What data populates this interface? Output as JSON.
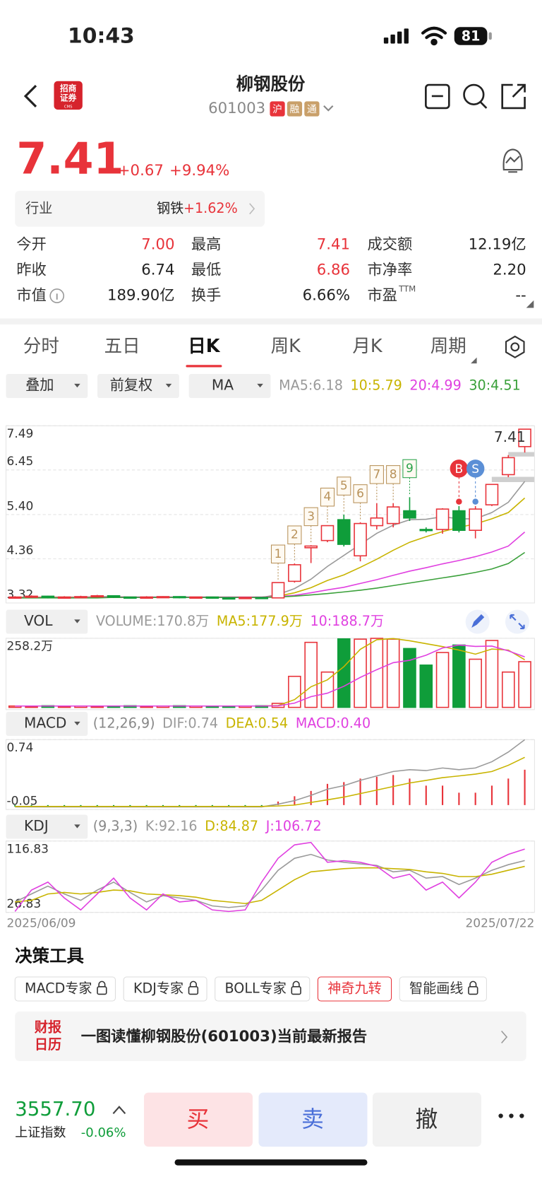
{
  "status_bar": {
    "time": "10:43",
    "battery": "81"
  },
  "header": {
    "logo_text": [
      "招商",
      "证券"
    ],
    "logo_sub": "CMS",
    "title": "柳钢股份",
    "code": "601003",
    "badges": [
      {
        "text": "沪",
        "color": "#e8333a"
      },
      {
        "text": "融",
        "color": "#c9a06a"
      },
      {
        "text": "通",
        "color": "#c9a06a"
      }
    ]
  },
  "quote": {
    "price": "7.41",
    "change": "+0.67",
    "change_pct": "+9.94%"
  },
  "industry": {
    "label": "行业",
    "name": "钢铁",
    "change": "+1.62%"
  },
  "stats": [
    {
      "label": "今开",
      "value": "7.00",
      "color": "#e8333a"
    },
    {
      "label": "最高",
      "value": "7.41",
      "color": "#e8333a"
    },
    {
      "label": "成交额",
      "value": "12.19亿"
    },
    {
      "label": "昨收",
      "value": "6.74"
    },
    {
      "label": "最低",
      "value": "6.86",
      "color": "#e8333a"
    },
    {
      "label": "市净率",
      "value": "2.20"
    },
    {
      "label": "市值",
      "value": "189.90亿",
      "info": true
    },
    {
      "label": "换手",
      "value": "6.66%"
    },
    {
      "label": "市盈",
      "sup": "TTM",
      "value": "--"
    }
  ],
  "tabs": {
    "items": [
      "分时",
      "五日",
      "日K",
      "周K",
      "月K",
      "周期"
    ],
    "active": 2
  },
  "toolbar": {
    "buttons": [
      "叠加",
      "前复权",
      "MA"
    ]
  },
  "chart_data": [
    {
      "type": "candlestick",
      "open": [
        3.44,
        3.46,
        3.48,
        3.45,
        3.46,
        3.47,
        3.49,
        3.46,
        3.45,
        3.46,
        3.47,
        3.45,
        3.46,
        3.44,
        3.43,
        3.45,
        3.44,
        3.83,
        4.62,
        4.79,
        5.28,
        4.43,
        5.14,
        5.19,
        5.49,
        5.05,
        5.05,
        5.49,
        5.03,
        5.63,
        6.34,
        7.0
      ],
      "close": [
        3.46,
        3.48,
        3.45,
        3.46,
        3.47,
        3.49,
        3.46,
        3.45,
        3.46,
        3.47,
        3.45,
        3.46,
        3.44,
        3.43,
        3.45,
        3.44,
        3.8,
        4.22,
        4.66,
        5.14,
        4.7,
        5.19,
        5.32,
        5.58,
        5.32,
        5.03,
        5.53,
        5.03,
        5.53,
        6.11,
        6.74,
        7.41
      ],
      "low": [
        3.42,
        3.44,
        3.43,
        3.43,
        3.44,
        3.45,
        3.44,
        3.43,
        3.43,
        3.44,
        3.43,
        3.43,
        3.42,
        3.42,
        3.42,
        3.42,
        3.43,
        3.8,
        4.26,
        4.75,
        4.65,
        4.3,
        5.05,
        5.1,
        5.25,
        4.98,
        4.95,
        4.98,
        4.84,
        5.6,
        6.28,
        6.86
      ],
      "high": [
        3.48,
        3.5,
        3.49,
        3.48,
        3.49,
        3.51,
        3.5,
        3.47,
        3.48,
        3.48,
        3.48,
        3.47,
        3.47,
        3.46,
        3.46,
        3.46,
        3.8,
        4.25,
        4.68,
        5.14,
        5.4,
        5.22,
        5.67,
        5.67,
        5.81,
        5.1,
        5.55,
        5.6,
        5.6,
        6.11,
        6.8,
        7.41
      ],
      "up_color": "#e8333a",
      "down_color": "#0f9d3a",
      "ylim": [
        3.32,
        7.49
      ],
      "yticks": [
        3.32,
        4.36,
        {
          "value": 5.4,
          "label": "5.40"
        },
        6.45,
        7.49
      ],
      "series": [
        {
          "name": "MA5:",
          "legend_value": "6.18",
          "color": "#9a9a9a",
          "values": [
            3.45,
            3.45,
            3.46,
            3.46,
            3.46,
            3.47,
            3.47,
            3.46,
            3.46,
            3.46,
            3.46,
            3.46,
            3.46,
            3.45,
            3.45,
            3.45,
            3.52,
            3.66,
            3.88,
            4.18,
            4.44,
            4.7,
            4.96,
            5.15,
            5.28,
            5.29,
            5.35,
            5.3,
            5.3,
            5.45,
            5.69,
            6.18
          ]
        },
        {
          "name": "10:",
          "legend_value": "5.79",
          "color": "#c8b400",
          "values": [
            3.46,
            3.46,
            3.46,
            3.46,
            3.46,
            3.46,
            3.46,
            3.46,
            3.46,
            3.46,
            3.46,
            3.46,
            3.46,
            3.46,
            3.46,
            3.46,
            3.48,
            3.56,
            3.68,
            3.85,
            3.98,
            4.16,
            4.35,
            4.56,
            4.75,
            4.88,
            5.0,
            5.1,
            5.18,
            5.3,
            5.45,
            5.79
          ]
        },
        {
          "name": "20:",
          "legend_value": "4.99",
          "color": "#e040e0",
          "values": [
            3.45,
            3.45,
            3.45,
            3.45,
            3.45,
            3.45,
            3.46,
            3.46,
            3.46,
            3.46,
            3.46,
            3.46,
            3.46,
            3.46,
            3.46,
            3.46,
            3.47,
            3.5,
            3.56,
            3.63,
            3.69,
            3.78,
            3.87,
            3.97,
            4.07,
            4.15,
            4.24,
            4.32,
            4.41,
            4.52,
            4.66,
            4.99
          ]
        },
        {
          "name": "30:",
          "legend_value": "4.51",
          "color": "#3aa03a",
          "values": [
            3.44,
            3.44,
            3.44,
            3.44,
            3.44,
            3.44,
            3.45,
            3.45,
            3.45,
            3.45,
            3.45,
            3.45,
            3.45,
            3.45,
            3.45,
            3.45,
            3.46,
            3.48,
            3.51,
            3.54,
            3.58,
            3.62,
            3.67,
            3.73,
            3.79,
            3.85,
            3.91,
            3.97,
            4.04,
            4.12,
            4.25,
            4.51
          ]
        }
      ],
      "last_price_label": "7.41",
      "nine_turn": [
        "1",
        "2",
        "3",
        "4",
        "5",
        "6",
        "7",
        "8",
        "9"
      ],
      "signals": [
        "B",
        "S"
      ]
    },
    {
      "type": "bar",
      "selector": "VOL",
      "values": [
        5,
        4,
        6,
        4,
        5,
        4,
        5,
        6,
        4,
        5,
        6,
        5,
        4,
        4,
        5,
        6,
        15,
        116,
        243,
        132,
        256,
        255,
        258,
        255,
        220,
        158,
        205,
        233,
        180,
        250,
        132,
        170.8
      ],
      "legend": {
        "name": "VOLUME:",
        "legend_value": "170.8万",
        "color": "#9a9a9a"
      },
      "ylim": [
        0,
        258.2
      ],
      "yticks": [
        {
          "value": 258.2,
          "label": "258.2万"
        }
      ],
      "series": [
        {
          "name": "MA5:",
          "legend_value": "177.9万",
          "color": "#c8b400",
          "values": [
            5,
            5,
            5,
            5,
            5,
            5,
            5,
            5,
            5,
            5,
            5,
            5,
            5,
            5,
            5,
            5,
            7,
            29,
            77,
            103,
            152,
            217,
            253,
            257,
            249,
            238,
            227,
            214,
            199,
            218,
            214,
            177.9
          ]
        },
        {
          "name": "10:",
          "legend_value": "188.7万",
          "color": "#e040e0",
          "values": [
            5,
            5,
            5,
            5,
            5,
            5,
            5,
            5,
            5,
            5,
            5,
            5,
            5,
            5,
            5,
            5,
            6,
            16,
            40,
            53,
            79,
            112,
            141,
            167,
            176,
            195,
            222,
            233,
            228,
            229,
            211,
            188.7
          ]
        }
      ]
    },
    {
      "type": "macd",
      "selector": "MACD",
      "params": "(12,26,9)",
      "ylim": [
        -0.05,
        0.74
      ],
      "yticks": [
        0.74,
        -0.05
      ],
      "series": [
        {
          "name": "DIF:",
          "legend_value": "0.74",
          "color": "#9a9a9a",
          "values": [
            -0.02,
            -0.02,
            -0.02,
            -0.02,
            -0.02,
            -0.02,
            -0.02,
            -0.02,
            -0.02,
            -0.02,
            -0.02,
            -0.02,
            -0.02,
            -0.02,
            -0.02,
            -0.02,
            0.01,
            0.05,
            0.11,
            0.18,
            0.22,
            0.28,
            0.33,
            0.38,
            0.4,
            0.39,
            0.42,
            0.4,
            0.42,
            0.49,
            0.6,
            0.74
          ]
        },
        {
          "name": "DEA:",
          "legend_value": "0.54",
          "color": "#c8b400",
          "values": [
            -0.015,
            -0.015,
            -0.015,
            -0.015,
            -0.015,
            -0.015,
            -0.015,
            -0.015,
            -0.015,
            -0.015,
            -0.015,
            -0.015,
            -0.015,
            -0.015,
            -0.015,
            -0.015,
            -0.01,
            0.0,
            0.03,
            0.06,
            0.09,
            0.13,
            0.17,
            0.21,
            0.25,
            0.28,
            0.31,
            0.33,
            0.35,
            0.38,
            0.45,
            0.54
          ]
        }
      ],
      "bars": {
        "name": "MACD:",
        "legend_value": "0.40",
        "color": "#e040e0",
        "values": [
          -0.01,
          -0.01,
          -0.01,
          -0.01,
          -0.01,
          -0.01,
          -0.01,
          -0.01,
          -0.01,
          -0.01,
          -0.01,
          -0.01,
          -0.01,
          -0.01,
          -0.01,
          -0.01,
          0.04,
          0.1,
          0.16,
          0.24,
          0.26,
          0.3,
          0.32,
          0.34,
          0.3,
          0.22,
          0.22,
          0.14,
          0.14,
          0.22,
          0.3,
          0.4
        ]
      }
    },
    {
      "type": "line",
      "selector": "KDJ",
      "params": "(9,3,3)",
      "categories": [
        "2025/06/09",
        null,
        null,
        null,
        null,
        null,
        null,
        null,
        null,
        null,
        null,
        null,
        null,
        null,
        null,
        null,
        null,
        null,
        null,
        null,
        null,
        null,
        null,
        null,
        null,
        null,
        null,
        null,
        null,
        null,
        null,
        "2025/07/22"
      ],
      "ylim": [
        26.83,
        116.83
      ],
      "yticks": [
        116.83,
        26.83
      ],
      "series": [
        {
          "name": "K:",
          "legend_value": "92.16",
          "color": "#9a9a9a",
          "values": [
            40,
            50,
            60,
            50,
            42,
            55,
            65,
            52,
            40,
            48,
            45,
            42,
            35,
            33,
            35,
            55,
            80,
            95,
            100,
            93,
            90,
            88,
            86,
            78,
            80,
            70,
            72,
            62,
            70,
            80,
            87,
            92.16
          ]
        },
        {
          "name": "D:",
          "legend_value": "84.87",
          "color": "#c8b400",
          "values": [
            40,
            42,
            50,
            52,
            50,
            52,
            55,
            54,
            50,
            49,
            48,
            46,
            42,
            40,
            38,
            42,
            55,
            68,
            78,
            80,
            82,
            83,
            83,
            82,
            81,
            78,
            76,
            72,
            72,
            75,
            80,
            84.87
          ]
        },
        {
          "name": "J:",
          "legend_value": "106.72",
          "color": "#e040e0",
          "values": [
            28,
            55,
            65,
            45,
            30,
            50,
            70,
            45,
            30,
            50,
            40,
            42,
            30,
            28,
            30,
            65,
            95,
            112,
            115,
            90,
            92,
            90,
            85,
            70,
            75,
            55,
            65,
            45,
            65,
            90,
            100,
            106.72
          ]
        }
      ]
    }
  ],
  "tools": {
    "title": "决策工具",
    "items": [
      {
        "label": "MACD专家",
        "lock": true
      },
      {
        "label": "KDJ专家",
        "lock": true
      },
      {
        "label": "BOLL专家",
        "lock": true
      },
      {
        "label": "神奇九转",
        "active": true
      },
      {
        "label": "智能画线",
        "lock": true
      }
    ]
  },
  "report": {
    "logo": [
      "财报",
      "日历"
    ],
    "text": "一图读懂柳钢股份(601003)当前最新报告"
  },
  "footer": {
    "index_value": "3557.70",
    "index_name": "上证指数",
    "index_change": "-0.06%",
    "buttons": [
      {
        "text": "买",
        "bg": "#fde3e5",
        "color": "#e8333a"
      },
      {
        "text": "卖",
        "bg": "#e4eafb",
        "color": "#4a6fd8"
      },
      {
        "text": "撤",
        "bg": "#f2f2f2",
        "color": "#333333"
      }
    ]
  }
}
